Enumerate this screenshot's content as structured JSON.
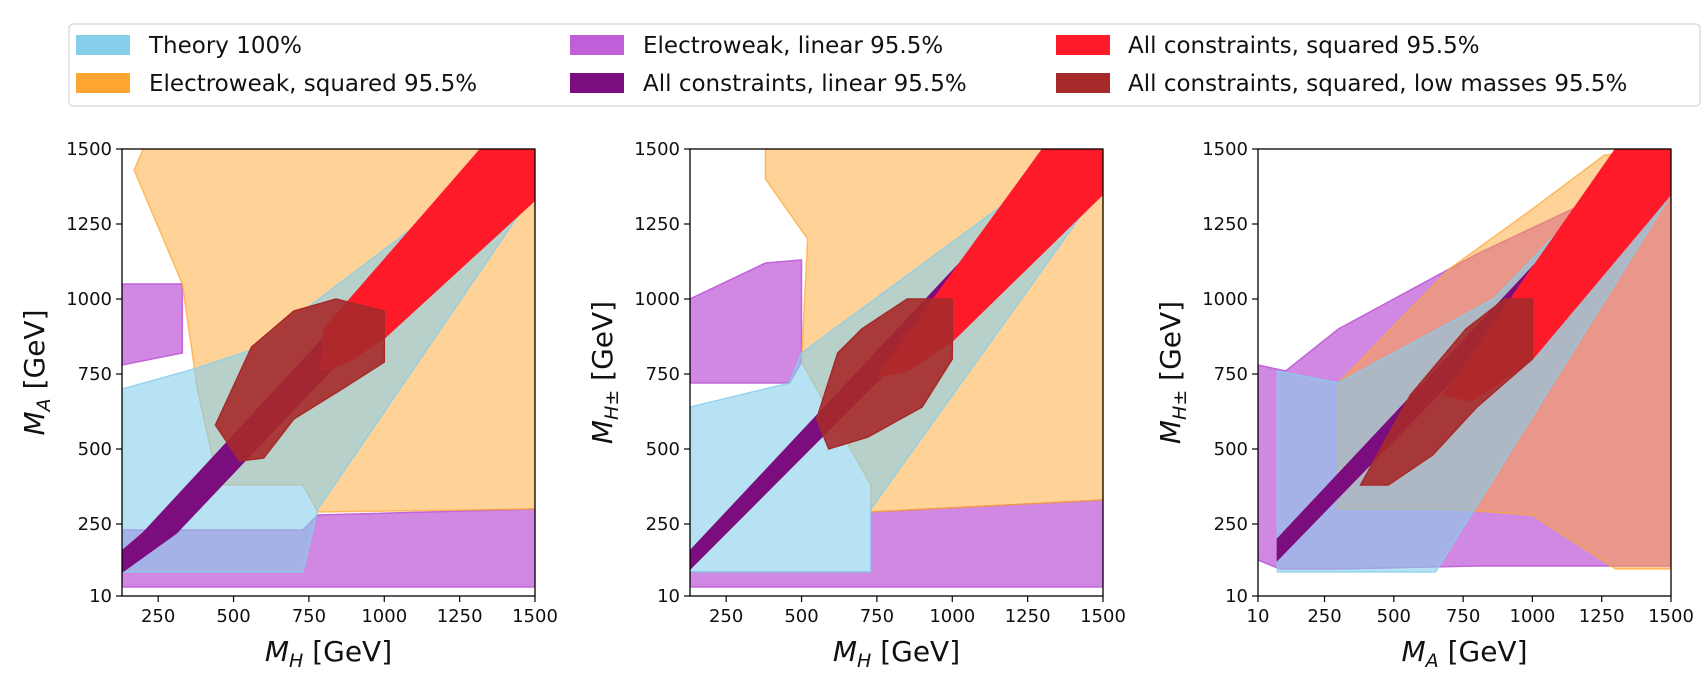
{
  "legend": {
    "placement": "top",
    "entries": [
      {
        "label": "Theory 100%",
        "color": "#87ceeb"
      },
      {
        "label": "Electroweak, squared 95.5%",
        "color": "#ffa632"
      },
      {
        "label": "Electroweak, linear 95.5%",
        "color": "#c060d8"
      },
      {
        "label": "All constraints, linear 95.5%",
        "color": "#7b0d7e"
      },
      {
        "label": "All constraints, squared 95.5%",
        "color": "#ff1a2a"
      },
      {
        "label": "All constraints, squared, low masses 95.5%",
        "color": "#a62a2a"
      }
    ]
  },
  "chart_data": [
    {
      "type": "contour",
      "title": "",
      "xlabel_main": "M",
      "xlabel_sub": "H",
      "xlabel_unit": " [GeV]",
      "ylabel_main": "M",
      "ylabel_sub": "A",
      "ylabel_unit": " [GeV]",
      "xlim": [
        130,
        1500
      ],
      "ylim": [
        10,
        1500
      ],
      "xticks": [
        250,
        500,
        750,
        1000,
        1250,
        1500
      ],
      "xtick_labels": [
        "250",
        "500",
        "750",
        "1000",
        "1250",
        "1500"
      ],
      "yticks": [
        10,
        250,
        500,
        750,
        1000,
        1250,
        1500
      ],
      "ytick_labels": [
        "10",
        "250",
        "500",
        "750",
        "1000",
        "1250",
        "1500"
      ],
      "regions": [
        {
          "name": "ew-linear",
          "color": "#c060d8",
          "opacity": 0.75,
          "points": [
            [
              130,
              1050
            ],
            [
              330,
              1050
            ],
            [
              330,
              820
            ],
            [
              130,
              780
            ]
          ]
        },
        {
          "name": "ew-linear",
          "color": "#c060d8",
          "opacity": 0.75,
          "points": [
            [
              130,
              40
            ],
            [
              1500,
              40
            ],
            [
              1500,
              300
            ],
            [
              780,
              280
            ],
            [
              730,
              230
            ],
            [
              130,
              230
            ]
          ]
        },
        {
          "name": "ew-squared",
          "color": "#ffa632",
          "opacity": 0.5,
          "points": [
            [
              200,
              1500
            ],
            [
              1200,
              1500
            ],
            [
              1500,
              1500
            ],
            [
              1500,
              300
            ],
            [
              780,
              290
            ],
            [
              730,
              380
            ],
            [
              450,
              380
            ],
            [
              380,
              700
            ],
            [
              330,
              1050
            ],
            [
              170,
              1430
            ]
          ]
        },
        {
          "name": "theory",
          "color": "#87ceeb",
          "opacity": 0.6,
          "points": [
            [
              130,
              90
            ],
            [
              730,
              90
            ],
            [
              780,
              300
            ],
            [
              1500,
              1360
            ],
            [
              1500,
              1500
            ],
            [
              1440,
              1500
            ],
            [
              560,
              830
            ],
            [
              380,
              770
            ],
            [
              130,
              700
            ]
          ]
        },
        {
          "name": "allcons-linear",
          "color": "#7b0d7e",
          "opacity": 1,
          "points": [
            [
              130,
              90
            ],
            [
              310,
              220
            ],
            [
              1500,
              1480
            ],
            [
              1500,
              1500
            ],
            [
              1380,
              1500
            ],
            [
              200,
              220
            ],
            [
              130,
              160
            ]
          ]
        },
        {
          "name": "allcons-squared",
          "color": "#ff1a2a",
          "opacity": 1,
          "points": [
            [
              800,
              900
            ],
            [
              1320,
              1500
            ],
            [
              1500,
              1500
            ],
            [
              1500,
              1330
            ],
            [
              1000,
              870
            ],
            [
              880,
              790
            ],
            [
              790,
              760
            ]
          ]
        },
        {
          "name": "allcons-squared-lowmass",
          "color": "#a62a2a",
          "opacity": 0.9,
          "points": [
            [
              440,
              580
            ],
            [
              560,
              840
            ],
            [
              700,
              960
            ],
            [
              840,
              1000
            ],
            [
              1000,
              960
            ],
            [
              1000,
              790
            ],
            [
              860,
              700
            ],
            [
              700,
              600
            ],
            [
              600,
              470
            ],
            [
              520,
              460
            ]
          ]
        }
      ]
    },
    {
      "type": "contour",
      "title": "",
      "xlabel_main": "M",
      "xlabel_sub": "H",
      "xlabel_unit": " [GeV]",
      "ylabel_main": "M",
      "ylabel_sub": "H±",
      "ylabel_unit": " [GeV]",
      "xlim": [
        130,
        1500
      ],
      "ylim": [
        10,
        1500
      ],
      "xticks": [
        250,
        500,
        750,
        1000,
        1250,
        1500
      ],
      "xtick_labels": [
        "250",
        "500",
        "750",
        "1000",
        "1250",
        "1500"
      ],
      "yticks": [
        10,
        250,
        500,
        750,
        1000,
        1250,
        1500
      ],
      "ytick_labels": [
        "10",
        "250",
        "500",
        "750",
        "1000",
        "1250",
        "1500"
      ],
      "regions": [
        {
          "name": "ew-linear",
          "color": "#c060d8",
          "opacity": 0.75,
          "points": [
            [
              130,
              1000
            ],
            [
              380,
              1120
            ],
            [
              500,
              1130
            ],
            [
              500,
              790
            ],
            [
              460,
              720
            ],
            [
              130,
              720
            ]
          ]
        },
        {
          "name": "ew-linear",
          "color": "#c060d8",
          "opacity": 0.75,
          "points": [
            [
              130,
              40
            ],
            [
              1500,
              40
            ],
            [
              1500,
              330
            ],
            [
              730,
              290
            ],
            [
              730,
              90
            ],
            [
              130,
              90
            ]
          ]
        },
        {
          "name": "ew-squared",
          "color": "#ffa632",
          "opacity": 0.5,
          "points": [
            [
              380,
              1500
            ],
            [
              1500,
              1500
            ],
            [
              1500,
              330
            ],
            [
              730,
              290
            ],
            [
              730,
              380
            ],
            [
              500,
              790
            ],
            [
              520,
              1200
            ],
            [
              380,
              1400
            ]
          ]
        },
        {
          "name": "theory",
          "color": "#87ceeb",
          "opacity": 0.6,
          "points": [
            [
              130,
              90
            ],
            [
              730,
              90
            ],
            [
              730,
              300
            ],
            [
              1500,
              1380
            ],
            [
              1500,
              1500
            ],
            [
              1420,
              1500
            ],
            [
              500,
              820
            ],
            [
              460,
              720
            ],
            [
              130,
              640
            ]
          ]
        },
        {
          "name": "allcons-linear",
          "color": "#7b0d7e",
          "opacity": 1,
          "points": [
            [
              130,
              100
            ],
            [
              1500,
              1480
            ],
            [
              1500,
              1500
            ],
            [
              1380,
              1500
            ],
            [
              130,
              160
            ]
          ]
        },
        {
          "name": "allcons-squared",
          "color": "#ff1a2a",
          "opacity": 1,
          "points": [
            [
              750,
              740
            ],
            [
              1300,
              1500
            ],
            [
              1500,
              1500
            ],
            [
              1500,
              1350
            ],
            [
              1000,
              860
            ],
            [
              850,
              760
            ]
          ]
        },
        {
          "name": "allcons-squared-lowmass",
          "color": "#a62a2a",
          "opacity": 0.9,
          "points": [
            [
              550,
              600
            ],
            [
              620,
              820
            ],
            [
              700,
              900
            ],
            [
              850,
              1000
            ],
            [
              1000,
              1000
            ],
            [
              1000,
              800
            ],
            [
              900,
              640
            ],
            [
              720,
              540
            ],
            [
              590,
              500
            ]
          ]
        }
      ]
    },
    {
      "type": "contour",
      "title": "",
      "xlabel_main": "M",
      "xlabel_sub": "A",
      "xlabel_unit": " [GeV]",
      "ylabel_main": "M",
      "ylabel_sub": "H±",
      "ylabel_unit": " [GeV]",
      "xlim": [
        10,
        1500
      ],
      "ylim": [
        10,
        1500
      ],
      "xticks": [
        10,
        250,
        500,
        750,
        1000,
        1250,
        1500
      ],
      "xtick_labels": [
        "10",
        "250",
        "500",
        "750",
        "1000",
        "1250",
        "1500"
      ],
      "yticks": [
        10,
        250,
        500,
        750,
        1000,
        1250,
        1500
      ],
      "ytick_labels": [
        "10",
        "250",
        "500",
        "750",
        "1000",
        "1250",
        "1500"
      ],
      "regions": [
        {
          "name": "ew-linear",
          "color": "#c060d8",
          "opacity": 0.75,
          "points": [
            [
              10,
              130
            ],
            [
              10,
              780
            ],
            [
              110,
              760
            ],
            [
              300,
              900
            ],
            [
              800,
              1150
            ],
            [
              1260,
              1350
            ],
            [
              1500,
              1450
            ],
            [
              1500,
              110
            ],
            [
              800,
              110
            ],
            [
              300,
              100
            ],
            [
              90,
              100
            ]
          ]
        },
        {
          "name": "ew-squared",
          "color": "#ffa632",
          "opacity": 0.5,
          "points": [
            [
              300,
              300
            ],
            [
              300,
              720
            ],
            [
              700,
              1100
            ],
            [
              1000,
              1300
            ],
            [
              1260,
              1480
            ],
            [
              1500,
              1500
            ],
            [
              1500,
              100
            ],
            [
              1300,
              100
            ],
            [
              1000,
              280
            ],
            [
              700,
              300
            ]
          ]
        },
        {
          "name": "theory",
          "color": "#87ceeb",
          "opacity": 0.6,
          "points": [
            [
              80,
              90
            ],
            [
              650,
              90
            ],
            [
              1500,
              1350
            ],
            [
              1500,
              1500
            ],
            [
              1380,
              1500
            ],
            [
              860,
              1000
            ],
            [
              300,
              720
            ],
            [
              80,
              760
            ]
          ]
        },
        {
          "name": "allcons-linear",
          "color": "#7b0d7e",
          "opacity": 1,
          "points": [
            [
              80,
              130
            ],
            [
              1500,
              1480
            ],
            [
              1500,
              1500
            ],
            [
              1400,
              1500
            ],
            [
              80,
              200
            ]
          ]
        },
        {
          "name": "allcons-squared",
          "color": "#ff1a2a",
          "opacity": 1,
          "points": [
            [
              680,
              680
            ],
            [
              1300,
              1500
            ],
            [
              1500,
              1500
            ],
            [
              1500,
              1350
            ],
            [
              1000,
              800
            ],
            [
              880,
              720
            ],
            [
              780,
              660
            ]
          ]
        },
        {
          "name": "allcons-squared-lowmass",
          "color": "#a62a2a",
          "opacity": 0.9,
          "points": [
            [
              380,
              380
            ],
            [
              560,
              680
            ],
            [
              760,
              900
            ],
            [
              900,
              1000
            ],
            [
              1000,
              1000
            ],
            [
              1000,
              800
            ],
            [
              800,
              640
            ],
            [
              640,
              480
            ],
            [
              480,
              380
            ]
          ]
        }
      ]
    }
  ]
}
